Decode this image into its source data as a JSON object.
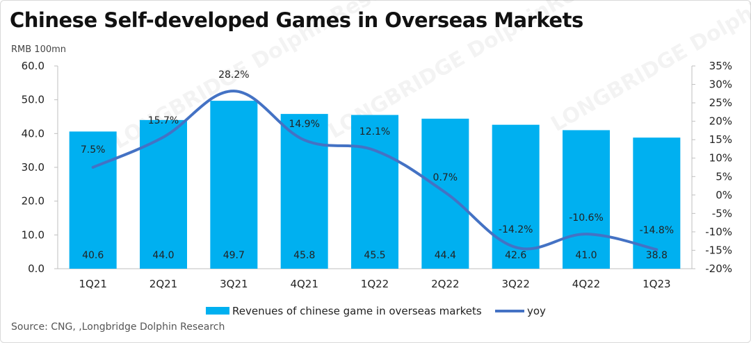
{
  "header": {
    "title": "Chinese Self-developed Games in Overseas Markets",
    "unit": "RMB 100mn"
  },
  "footer": {
    "source": "Source: CNG, ,Longbridge Dolphin Research"
  },
  "chart_data": {
    "type": "bar",
    "categories": [
      "1Q21",
      "2Q21",
      "3Q21",
      "4Q21",
      "1Q22",
      "2Q22",
      "3Q22",
      "4Q22",
      "1Q23"
    ],
    "series": [
      {
        "name": "Revenues of chinese game in overseas markets",
        "type": "bar",
        "axis": "left",
        "values": [
          40.6,
          44.0,
          49.7,
          45.8,
          45.5,
          44.4,
          42.6,
          41.0,
          38.8
        ],
        "labels": [
          "40.6",
          "44.0",
          "49.7",
          "45.8",
          "45.5",
          "44.4",
          "42.6",
          "41.0",
          "38.8"
        ],
        "color": "#00b0f0"
      },
      {
        "name": "yoy",
        "type": "line",
        "axis": "right",
        "values": [
          7.5,
          15.7,
          28.2,
          14.9,
          12.1,
          0.7,
          -14.2,
          -10.6,
          -14.8
        ],
        "labels": [
          "7.5%",
          "15.7%",
          "28.2%",
          "14.9%",
          "12.1%",
          "0.7%",
          "-14.2%",
          "-10.6%",
          "-14.8%"
        ],
        "color": "#4472c4"
      }
    ],
    "y_left": {
      "range": [
        0,
        60
      ],
      "ticks": [
        "0.0",
        "10.0",
        "20.0",
        "30.0",
        "40.0",
        "50.0",
        "60.0"
      ]
    },
    "y_right": {
      "range": [
        -20,
        35
      ],
      "ticks": [
        "-20%",
        "-15%",
        "-10%",
        "-5%",
        "0%",
        "5%",
        "10%",
        "15%",
        "20%",
        "25%",
        "30%",
        "35%"
      ]
    },
    "grid": false,
    "legend": "bottom",
    "watermark": "LONGBRIDGE DolphinResearch"
  }
}
